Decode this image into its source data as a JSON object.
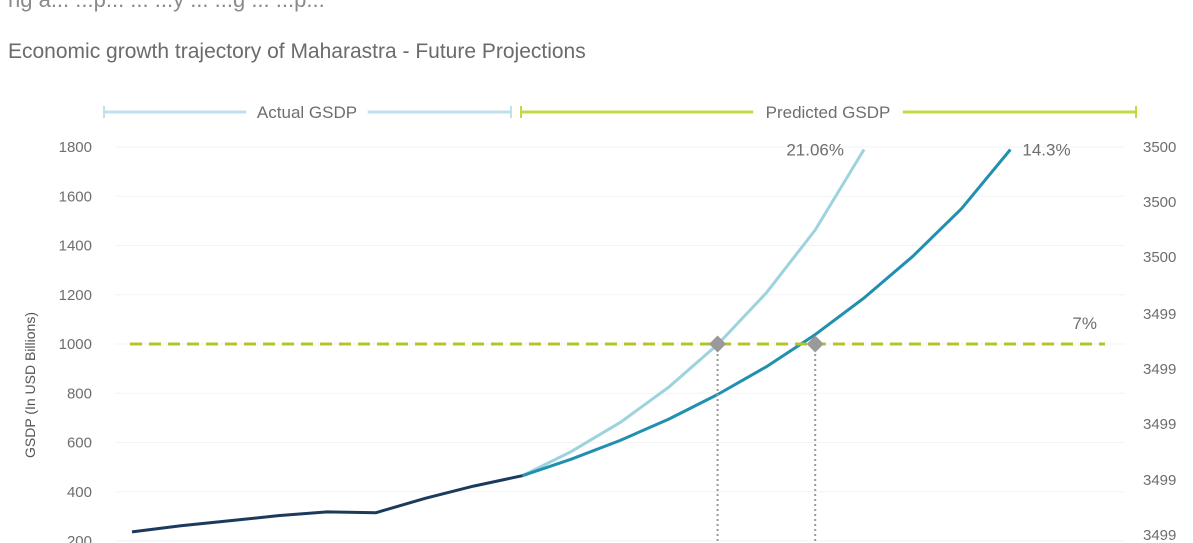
{
  "top_text": "ng a... ...p... ... ...y ... ...g ... ...p...",
  "chart_data": {
    "type": "line",
    "title": "Economic growth trajectory of Maharastra - Future Projections",
    "ylabel": "GSDP (In USD Billions)",
    "ylim": [
      200,
      1800
    ],
    "yticks": [
      1800,
      1600,
      1400,
      1200,
      1000,
      800,
      600,
      400,
      200
    ],
    "y2ticks": [
      "3500",
      "3500",
      "3500",
      "3499",
      "3499",
      "3499",
      "3499",
      "3499"
    ],
    "bands": [
      {
        "label": "Actual GSDP",
        "color": "#bfe0ec"
      },
      {
        "label": "Predicted GSDP",
        "color": "#c6d845"
      }
    ],
    "actual": {
      "color": "#1b3a5c",
      "x": [
        0,
        1,
        2,
        3,
        4,
        5,
        6,
        7,
        8
      ],
      "y": [
        237,
        262,
        282,
        303,
        318,
        315,
        373,
        423,
        465
      ]
    },
    "projections": [
      {
        "label": "21.06%",
        "color": "#9dd3dd",
        "x": [
          8,
          9,
          10,
          11,
          12,
          13,
          14,
          15
        ],
        "y": [
          465,
          563,
          681,
          825,
          998,
          1208,
          1463,
          1790
        ]
      },
      {
        "label": "14.3%",
        "color": "#2190b0",
        "x": [
          8,
          9,
          10,
          11,
          12,
          13,
          14,
          15,
          16,
          17,
          18
        ],
        "y": [
          465,
          532,
          608,
          695,
          795,
          908,
          1038,
          1187,
          1356,
          1550,
          1790
        ]
      }
    ],
    "threshold": {
      "label": "7%",
      "value": 1000,
      "color": "#b5c42a"
    },
    "markers": [
      {
        "x": 12,
        "y": 1000
      },
      {
        "x": 14,
        "y": 1000
      }
    ],
    "marker_color": "#9a9a9a",
    "grid": true
  }
}
